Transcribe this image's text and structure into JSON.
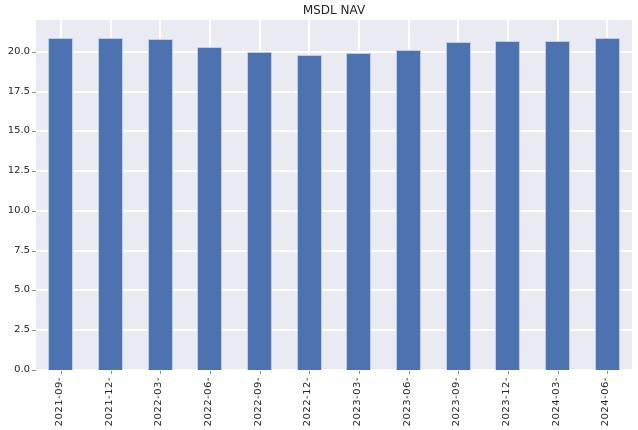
{
  "chart_data": {
    "type": "bar",
    "title": "MSDL NAV",
    "categories": [
      "2021-09-",
      "2021-12-",
      "2022-03-",
      "2022-06-",
      "2022-09-",
      "2022-12-",
      "2023-03-",
      "2023-06-",
      "2023-09-",
      "2023-12-",
      "2024-03-",
      "2024-06-"
    ],
    "values": [
      20.9,
      20.9,
      20.8,
      20.3,
      20.0,
      19.8,
      19.9,
      20.1,
      20.6,
      20.65,
      20.65,
      20.85
    ],
    "xlabel": "",
    "ylabel": "",
    "ylim": [
      0,
      22
    ],
    "yticks": [
      0.0,
      2.5,
      5.0,
      7.5,
      10.0,
      12.5,
      15.0,
      17.5,
      20.0
    ],
    "ytick_labels": [
      "0.0",
      "2.5",
      "5.0",
      "7.5",
      "10.0",
      "12.5",
      "15.0",
      "17.5",
      "20.0"
    ],
    "grid": true,
    "legend": "none",
    "bar_width_fraction": 0.5,
    "x_label_rotation_deg": 90,
    "colors": {
      "bar": "#4c72b0",
      "bar_edge": "rgba(255,255,255,0.65)",
      "plot_background": "#eaeaf2",
      "gridline": "#ffffff",
      "text": "#262626",
      "tick": "#8a8a8a",
      "figure_background": "#ffffff"
    }
  }
}
